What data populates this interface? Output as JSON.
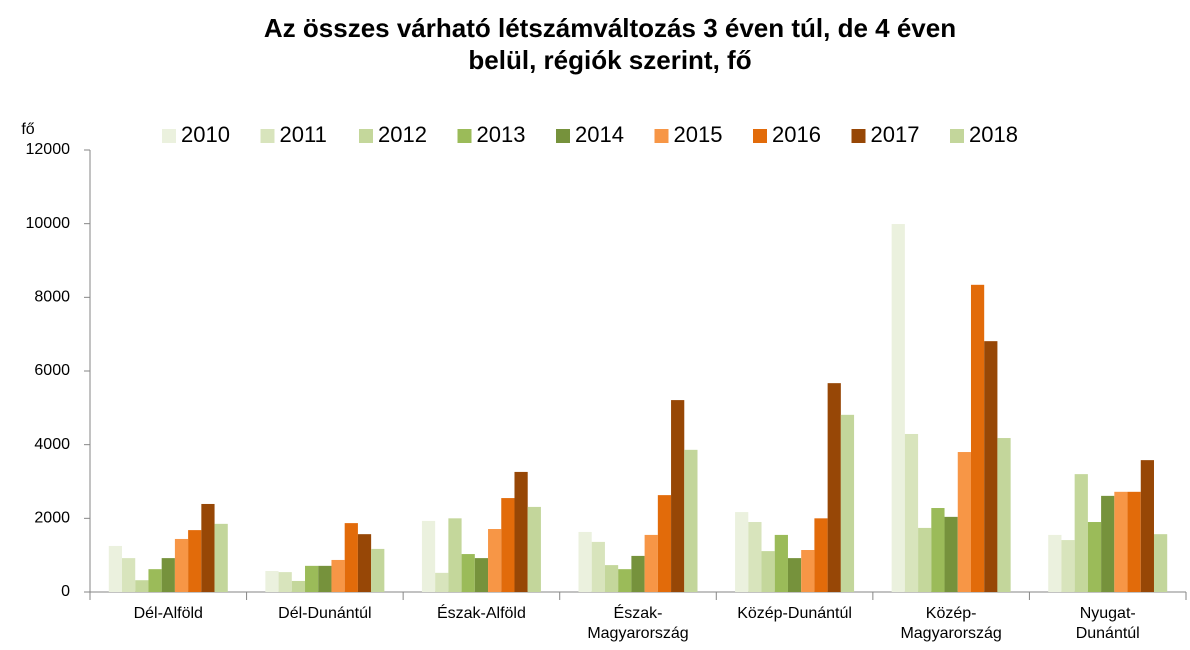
{
  "chart_data": {
    "type": "bar",
    "title": "Az összes  várható létszámváltozás 3 éven túl, de 4 éven\nbelül, régiók szerint, fő",
    "y_label": "fő",
    "categories": [
      "Dél-Alföld",
      "Dél-Dunántúl",
      "Észak-Alföld",
      "Észak-\nMagyarország",
      "Közép-Dunántúl",
      "Közép-\nMagyarország",
      "Nyugat-\nDunántúl"
    ],
    "series": [
      {
        "name": "2010",
        "color": "#ebf1de",
        "values": [
          1250,
          570,
          1930,
          1630,
          2170,
          9990,
          1550
        ]
      },
      {
        "name": "2011",
        "color": "#d8e4bc",
        "values": [
          920,
          540,
          520,
          1360,
          1900,
          4290,
          1410
        ]
      },
      {
        "name": "2012",
        "color": "#c4d79b",
        "values": [
          320,
          300,
          2000,
          730,
          1110,
          1740,
          3200
        ]
      },
      {
        "name": "2013",
        "color": "#9bbb59",
        "values": [
          620,
          710,
          1030,
          620,
          1550,
          2280,
          1900
        ]
      },
      {
        "name": "2014",
        "color": "#76923c",
        "values": [
          920,
          710,
          920,
          980,
          920,
          2040,
          2610
        ]
      },
      {
        "name": "2015",
        "color": "#f79646",
        "values": [
          1440,
          870,
          1710,
          1550,
          1140,
          3800,
          2720
        ]
      },
      {
        "name": "2016",
        "color": "#e26b0a",
        "values": [
          1680,
          1870,
          2550,
          2630,
          2000,
          8340,
          2720
        ]
      },
      {
        "name": "2017",
        "color": "#974706",
        "values": [
          2390,
          1570,
          3260,
          5210,
          5670,
          6810,
          3580
        ]
      },
      {
        "name": "2018",
        "color": "#c3d69b",
        "values": [
          1850,
          1170,
          2310,
          3860,
          4810,
          4180,
          1570
        ]
      }
    ],
    "ylim": [
      0,
      12000
    ],
    "yticks": [
      0,
      2000,
      4000,
      6000,
      8000,
      10000,
      12000
    ],
    "legend": "top"
  }
}
